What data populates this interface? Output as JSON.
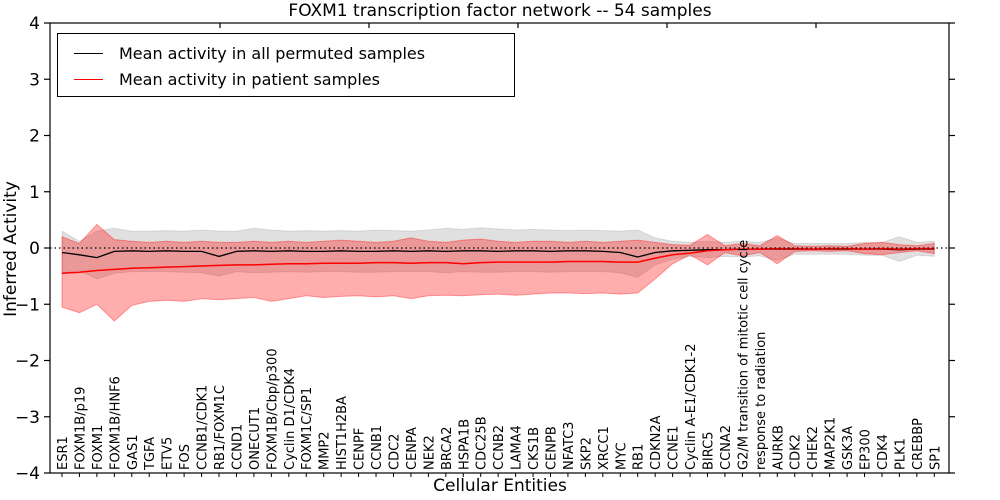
{
  "chart_data": {
    "type": "line",
    "title": "FOXM1 transcription factor network -- 54 samples",
    "xlabel": "Cellular Entities",
    "ylabel": "Inferred Activity",
    "ylim": [
      -4,
      4
    ],
    "ytick_values": [
      4,
      3,
      2,
      1,
      0,
      -1,
      -2,
      -3,
      -4
    ],
    "ytick_labels": [
      "4",
      "3",
      "2",
      "1",
      "0",
      "−1",
      "−2",
      "−3",
      "−4"
    ],
    "grid": false,
    "zero_reference_line": 0,
    "legend_position": "upper left",
    "legend": [
      {
        "label": "Mean activity in all permuted samples",
        "color": "#000000"
      },
      {
        "label": "Mean activity in patient samples",
        "color": "#ff0000"
      }
    ],
    "colors": {
      "permuted_line": "#000000",
      "patient_line": "#ff0000",
      "permuted_band": "rgba(0,0,0,0.12)",
      "permuted_band_edge": "rgba(0,0,0,0.10)",
      "patient_band": "rgba(255,0,0,0.32)",
      "patient_band_edge": "rgba(255,0,0,0.35)"
    },
    "categories": [
      "ESR1",
      "FOXM1B/p19",
      "FOXM1",
      "FOXM1B/HNF6",
      "GAS1",
      "TGFA",
      "ETV5",
      "FOS",
      "CCNB1/CDK1",
      "RB1/FOXM1C",
      "CCND1",
      "ONECUT1",
      "FOXM1B/Cbp/p300",
      "Cyclin D1/CDK4",
      "FOXM1C/SP1",
      "MMP2",
      "HIST1H2BA",
      "CENPF",
      "CCNB1",
      "CDC2",
      "CENPA",
      "NEK2",
      "BRCA2",
      "HSPA1B",
      "CDC25B",
      "CCNB2",
      "LAMA4",
      "CKS1B",
      "CENPB",
      "NFATC3",
      "SKP2",
      "XRCC1",
      "MYC",
      "RB1",
      "CDKN2A",
      "CCNE1",
      "Cyclin A-E1/CDK1-2",
      "BIRC5",
      "CCNA2",
      "G2/M transition of mitotic cell cycle",
      "response to radiation",
      "AURKB",
      "CDK2",
      "CHEK2",
      "MAP2K1",
      "GSK3A",
      "EP300",
      "CDK4",
      "PLK1",
      "CREBBP",
      "SP1"
    ],
    "series": [
      {
        "name": "permuted_mean",
        "values": [
          -0.08,
          -0.12,
          -0.17,
          -0.06,
          -0.05,
          -0.06,
          -0.05,
          -0.06,
          -0.06,
          -0.15,
          -0.06,
          -0.05,
          -0.06,
          -0.05,
          -0.06,
          -0.06,
          -0.05,
          -0.06,
          -0.06,
          -0.05,
          -0.06,
          -0.05,
          -0.06,
          -0.05,
          -0.05,
          -0.06,
          -0.05,
          -0.05,
          -0.06,
          -0.05,
          -0.05,
          -0.06,
          -0.08,
          -0.16,
          -0.08,
          -0.05,
          -0.04,
          -0.03,
          -0.03,
          -0.02,
          -0.02,
          -0.02,
          -0.02,
          -0.02,
          -0.02,
          -0.02,
          -0.02,
          -0.02,
          -0.03,
          -0.02,
          -0.02
        ]
      },
      {
        "name": "patient_mean",
        "values": [
          -0.45,
          -0.43,
          -0.4,
          -0.38,
          -0.36,
          -0.35,
          -0.34,
          -0.33,
          -0.32,
          -0.31,
          -0.3,
          -0.3,
          -0.29,
          -0.28,
          -0.28,
          -0.27,
          -0.27,
          -0.27,
          -0.26,
          -0.26,
          -0.27,
          -0.26,
          -0.26,
          -0.28,
          -0.26,
          -0.25,
          -0.25,
          -0.25,
          -0.25,
          -0.24,
          -0.24,
          -0.24,
          -0.25,
          -0.25,
          -0.18,
          -0.12,
          -0.09,
          -0.05,
          -0.03,
          -0.02,
          -0.02,
          -0.01,
          -0.01,
          -0.02,
          -0.01,
          -0.01,
          -0.02,
          -0.01,
          -0.02,
          -0.01,
          -0.01
        ]
      },
      {
        "name": "permuted_band_upper",
        "values": [
          0.3,
          0.12,
          0.3,
          0.35,
          0.3,
          0.3,
          0.31,
          0.3,
          0.32,
          0.3,
          0.3,
          0.35,
          0.32,
          0.3,
          0.31,
          0.3,
          0.31,
          0.3,
          0.32,
          0.31,
          0.3,
          0.32,
          0.35,
          0.33,
          0.36,
          0.34,
          0.32,
          0.33,
          0.32,
          0.31,
          0.32,
          0.31,
          0.3,
          0.32,
          0.18,
          0.12,
          0.1,
          0.12,
          0.1,
          0.12,
          0.1,
          0.18,
          0.08,
          0.08,
          0.08,
          0.08,
          0.1,
          0.1,
          0.2,
          0.1,
          0.12
        ]
      },
      {
        "name": "permuted_band_lower",
        "values": [
          -0.45,
          -0.4,
          -0.55,
          -0.45,
          -0.42,
          -0.42,
          -0.42,
          -0.43,
          -0.44,
          -0.5,
          -0.42,
          -0.44,
          -0.43,
          -0.42,
          -0.43,
          -0.42,
          -0.42,
          -0.43,
          -0.43,
          -0.42,
          -0.42,
          -0.42,
          -0.44,
          -0.42,
          -0.43,
          -0.43,
          -0.42,
          -0.42,
          -0.43,
          -0.42,
          -0.42,
          -0.42,
          -0.44,
          -0.52,
          -0.3,
          -0.2,
          -0.15,
          -0.17,
          -0.15,
          -0.16,
          -0.14,
          -0.22,
          -0.11,
          -0.11,
          -0.11,
          -0.11,
          -0.13,
          -0.13,
          -0.24,
          -0.13,
          -0.15
        ]
      },
      {
        "name": "patient_band_upper",
        "values": [
          0.2,
          0.08,
          0.42,
          0.15,
          0.12,
          0.1,
          0.12,
          0.1,
          0.12,
          0.1,
          0.1,
          0.12,
          0.1,
          0.12,
          0.1,
          0.12,
          0.14,
          0.12,
          0.1,
          0.12,
          0.18,
          0.12,
          0.1,
          0.14,
          0.16,
          0.12,
          0.1,
          0.12,
          0.12,
          0.1,
          0.12,
          0.1,
          0.12,
          0.14,
          0.1,
          0.06,
          0.05,
          0.24,
          0.04,
          0.08,
          0.04,
          0.22,
          0.04,
          0.03,
          0.04,
          0.03,
          0.08,
          0.1,
          0.06,
          0.04,
          0.08
        ]
      },
      {
        "name": "patient_band_lower",
        "values": [
          -1.05,
          -1.15,
          -1.0,
          -1.3,
          -1.02,
          -0.95,
          -0.93,
          -0.95,
          -0.9,
          -0.92,
          -0.9,
          -0.88,
          -0.95,
          -0.9,
          -0.85,
          -0.88,
          -0.86,
          -0.85,
          -0.87,
          -0.85,
          -0.9,
          -0.85,
          -0.84,
          -0.85,
          -0.83,
          -0.82,
          -0.84,
          -0.82,
          -0.8,
          -0.8,
          -0.81,
          -0.8,
          -0.82,
          -0.8,
          -0.55,
          -0.28,
          -0.12,
          -0.3,
          -0.08,
          -0.14,
          -0.08,
          -0.28,
          -0.06,
          -0.05,
          -0.06,
          -0.05,
          -0.1,
          -0.12,
          -0.08,
          -0.05,
          -0.1
        ]
      }
    ]
  }
}
